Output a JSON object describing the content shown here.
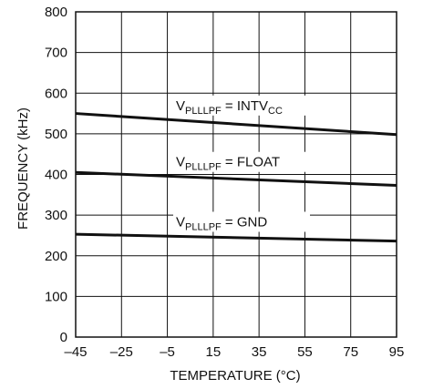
{
  "chart_data": {
    "type": "line",
    "xlabel": "TEMPERATURE (°C)",
    "ylabel": "FREQUENCY (kHz)",
    "xlim": [
      -45,
      95
    ],
    "ylim": [
      0,
      800
    ],
    "xticks": [
      -45,
      -25,
      -5,
      15,
      35,
      55,
      75,
      95
    ],
    "yticks": [
      0,
      100,
      200,
      300,
      400,
      500,
      600,
      700,
      800
    ],
    "xtick_labels": [
      "–45",
      "–25",
      "–5",
      "15",
      "35",
      "55",
      "75",
      "95"
    ],
    "ytick_labels": [
      "0",
      "100",
      "200",
      "300",
      "400",
      "500",
      "600",
      "700",
      "800"
    ],
    "grid": true,
    "series": [
      {
        "name": "VPLLLPF = INTVCC",
        "label_main": "V",
        "label_sub": "PLLLPF",
        "label_mid": " = INTV",
        "label_sub2": "CC",
        "x": [
          -45,
          95
        ],
        "y": [
          550,
          498
        ]
      },
      {
        "name": "VPLLLPF = FLOAT",
        "label_main": "V",
        "label_sub": "PLLLPF",
        "label_mid": " = FLOAT",
        "label_sub2": "",
        "x": [
          -45,
          95
        ],
        "y": [
          405,
          373
        ]
      },
      {
        "name": "VPLLLPF = GND",
        "label_main": "V",
        "label_sub": "PLLLPF",
        "label_mid": " = GND",
        "label_sub2": "",
        "x": [
          -45,
          95
        ],
        "y": [
          253,
          236
        ]
      }
    ],
    "line_color": "#111111",
    "grid_color": "#111111"
  }
}
